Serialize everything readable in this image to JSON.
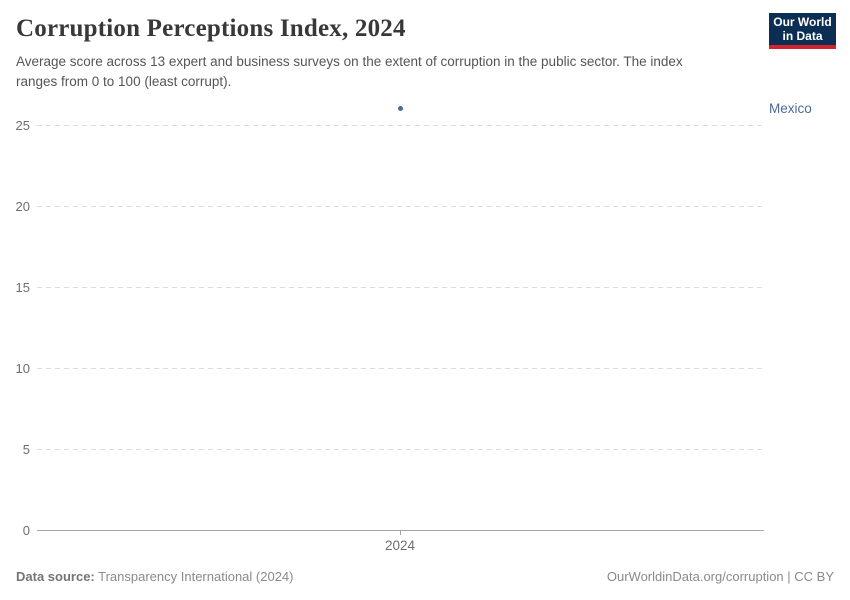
{
  "header": {
    "title": "Corruption Perceptions Index, 2024",
    "subtitle": "Average score across 13 expert and business surveys on the extent of corruption in the public sector. The index ranges from 0 to 100 (least corrupt).",
    "logo": {
      "line1": "Our World",
      "line2": "in Data",
      "bg_color": "#0d2e54",
      "stripe_color": "#d1242e"
    }
  },
  "chart_data": {
    "type": "scatter",
    "title": "Corruption Perceptions Index, 2024",
    "x": [
      2024
    ],
    "xticks": [
      2024
    ],
    "yticks": [
      0,
      5,
      10,
      15,
      20,
      25
    ],
    "ylim": [
      0,
      26
    ],
    "xlabel": "",
    "ylabel": "",
    "grid": "horizontal-dashed",
    "legend_position": "right-entity-label",
    "series": [
      {
        "name": "Mexico",
        "values": [
          26
        ],
        "color": "#4c6a9c"
      }
    ]
  },
  "footer": {
    "source_label": "Data source:",
    "source_value": "Transparency International (2024)",
    "link": "OurWorldinData.org/corruption | CC BY"
  }
}
